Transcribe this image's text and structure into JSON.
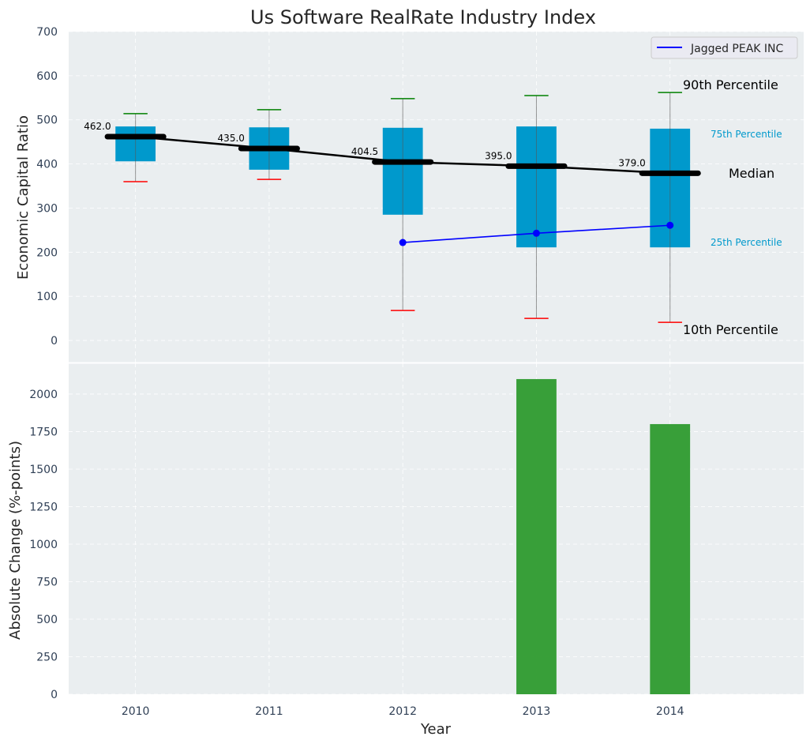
{
  "chart_data": [
    {
      "type": "box",
      "title": "Us Software RealRate Industry Index",
      "ylabel": "Economic Capital Ratio",
      "xlabel": "",
      "ylim": [
        -50,
        700
      ],
      "xlim": [
        2009.5,
        2015.0
      ],
      "yticks": [
        0,
        100,
        200,
        300,
        400,
        500,
        600,
        700
      ],
      "grid": true,
      "categories": [
        2010,
        2011,
        2012,
        2013,
        2014
      ],
      "p10": [
        360,
        365,
        68,
        50,
        41
      ],
      "p25": [
        406,
        387,
        285,
        211,
        211
      ],
      "median": [
        462.0,
        435.0,
        404.5,
        395.0,
        379.0
      ],
      "p75": [
        485,
        483,
        482,
        485,
        480
      ],
      "p90": [
        514,
        523,
        548,
        555,
        562
      ],
      "median_labels": [
        "462.0",
        "435.0",
        "404.5",
        "395.0",
        "379.0"
      ],
      "series": [
        {
          "name": "Jagged PEAK INC",
          "x": [
            2012,
            2013,
            2014
          ],
          "values": [
            222,
            243,
            261
          ],
          "color": "#0000ff"
        }
      ],
      "legend": {
        "placement": "top-right",
        "entries": [
          "Jagged PEAK INC"
        ]
      },
      "annotations": {
        "p90": "90th Percentile",
        "p75": "75th Percentile",
        "median": "Median",
        "p25": "25th Percentile",
        "p10": "10th Percentile"
      },
      "colors": {
        "box": "#0099cc",
        "p90": "#008000",
        "p10": "#ff0000",
        "median": "#000000",
        "bg": "#eaeef0"
      }
    },
    {
      "type": "bar",
      "xlabel": "Year",
      "ylabel": "Absolute Change (%-points)",
      "ylim": [
        0,
        2205
      ],
      "yticks": [
        0,
        250,
        500,
        750,
        1000,
        1250,
        1500,
        1750,
        2000
      ],
      "xticks": [
        "2010",
        "2011",
        "2012",
        "2013",
        "2014"
      ],
      "categories": [
        2013,
        2014
      ],
      "values": [
        2100,
        1800
      ],
      "color": "#2e9a2e"
    }
  ]
}
